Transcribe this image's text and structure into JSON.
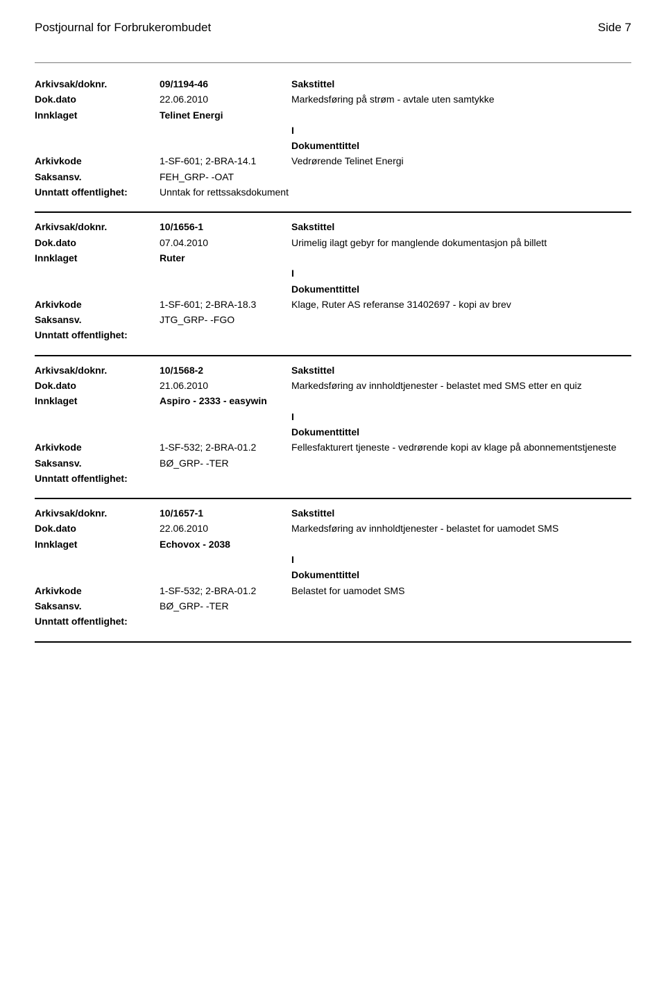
{
  "header": {
    "title": "Postjournal for Forbrukerombudet",
    "page": "Side 7"
  },
  "labels": {
    "arkivsak": "Arkivsak/doknr.",
    "dokdato": "Dok.dato",
    "innklaget": "Innklaget",
    "arkivkode": "Arkivkode",
    "saksansv": "Saksansv.",
    "unntatt": "Unntatt offentlighet:",
    "sakstittel": "Sakstittel",
    "dokumenttittel": "Dokumenttittel",
    "io": "I"
  },
  "records": [
    {
      "arkivsak": "09/1194-46",
      "dokdato": "22.06.2010",
      "innklaget": "Telinet Energi",
      "arkivkode": "1-SF-601; 2-BRA-14.1",
      "saksansv": "FEH_GRP- -OAT",
      "unntatt": "Unntak for rettssaksdokument",
      "sakstittel": "Markedsføring på strøm - avtale uten samtykke",
      "dokumenttittel": "Vedrørende Telinet Energi"
    },
    {
      "arkivsak": "10/1656-1",
      "dokdato": "07.04.2010",
      "innklaget": "Ruter",
      "arkivkode": "1-SF-601; 2-BRA-18.3",
      "saksansv": "JTG_GRP- -FGO",
      "unntatt": "",
      "sakstittel": "Urimelig ilagt gebyr for manglende dokumentasjon på billett",
      "dokumenttittel": "Klage, Ruter AS referanse 31402697 - kopi av brev"
    },
    {
      "arkivsak": "10/1568-2",
      "dokdato": "21.06.2010",
      "innklaget": "Aspiro - 2333 - easywin",
      "arkivkode": "1-SF-532; 2-BRA-01.2",
      "saksansv": "BØ_GRP- -TER",
      "unntatt": "",
      "sakstittel": "Markedsføring av innholdtjenester - belastet med SMS etter en quiz",
      "dokumenttittel": "Fellesfakturert tjeneste - vedrørende kopi av klage på abonnementstjeneste"
    },
    {
      "arkivsak": "10/1657-1",
      "dokdato": "22.06.2010",
      "innklaget": "Echovox - 2038",
      "arkivkode": "1-SF-532; 2-BRA-01.2",
      "saksansv": "BØ_GRP- -TER",
      "unntatt": "",
      "sakstittel": "Markedsføring av innholdtjenester - belastet for uamodet SMS",
      "dokumenttittel": "Belastet for uamodet SMS"
    }
  ]
}
